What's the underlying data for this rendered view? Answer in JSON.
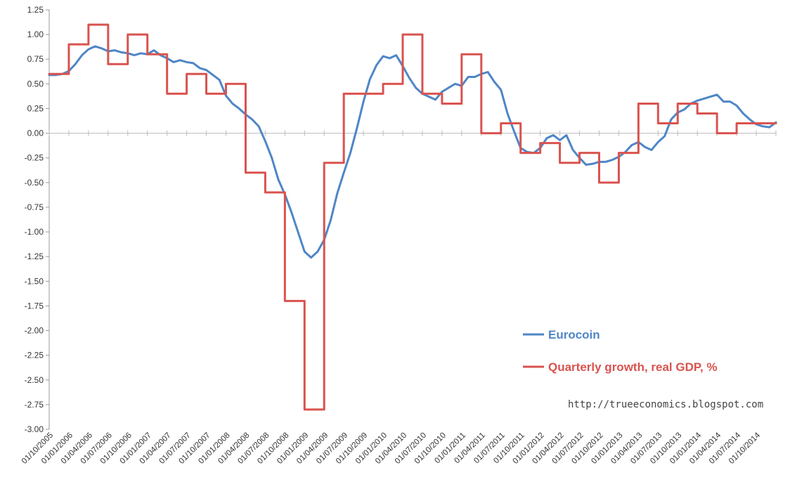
{
  "chart_data": {
    "type": "line",
    "ylim": [
      -3.0,
      1.25
    ],
    "ytick_labels": [
      "1.25",
      "1.00",
      "0.75",
      "0.50",
      "0.25",
      "0.00",
      "-0.25",
      "-0.50",
      "-0.75",
      "-1.00",
      "-1.25",
      "-1.50",
      "-1.75",
      "-2.00",
      "-2.25",
      "-2.50",
      "-2.75",
      "-3.00"
    ],
    "x_tick_labels": [
      "01/10/2005",
      "01/01/2006",
      "01/04/2006",
      "01/07/2006",
      "01/10/2006",
      "01/01/2007",
      "01/04/2007",
      "01/07/2007",
      "01/10/2007",
      "01/01/2008",
      "01/04/2008",
      "01/07/2008",
      "01/10/2008",
      "01/01/2009",
      "01/04/2009",
      "01/07/2009",
      "01/10/2009",
      "01/01/2010",
      "01/04/2010",
      "01/07/2010",
      "01/10/2010",
      "01/01/2011",
      "01/04/2011",
      "01/07/2011",
      "01/10/2011",
      "01/01/2012",
      "01/04/2012",
      "01/07/2012",
      "01/10/2012",
      "01/01/2013",
      "01/04/2013",
      "01/07/2013",
      "01/10/2013",
      "01/01/2014",
      "01/04/2014",
      "01/07/2014",
      "01/10/2014"
    ],
    "series": [
      {
        "name": "Eurocoin",
        "color": "#4f86c6",
        "step": false,
        "values": [
          0.59,
          0.59,
          0.6,
          0.63,
          0.7,
          0.79,
          0.85,
          0.88,
          0.86,
          0.83,
          0.84,
          0.82,
          0.81,
          0.79,
          0.81,
          0.8,
          0.84,
          0.79,
          0.76,
          0.72,
          0.74,
          0.72,
          0.71,
          0.66,
          0.64,
          0.59,
          0.54,
          0.38,
          0.3,
          0.25,
          0.19,
          0.14,
          0.07,
          -0.08,
          -0.25,
          -0.47,
          -0.62,
          -0.8,
          -1.0,
          -1.2,
          -1.26,
          -1.2,
          -1.08,
          -0.88,
          -0.61,
          -0.4,
          -0.2,
          0.05,
          0.32,
          0.55,
          0.69,
          0.78,
          0.76,
          0.79,
          0.68,
          0.56,
          0.46,
          0.4,
          0.37,
          0.34,
          0.42,
          0.46,
          0.5,
          0.48,
          0.57,
          0.57,
          0.6,
          0.62,
          0.52,
          0.44,
          0.2,
          0.02,
          -0.15,
          -0.19,
          -0.2,
          -0.15,
          -0.05,
          -0.02,
          -0.07,
          -0.02,
          -0.17,
          -0.25,
          -0.32,
          -0.31,
          -0.29,
          -0.29,
          -0.27,
          -0.24,
          -0.19,
          -0.12,
          -0.09,
          -0.14,
          -0.17,
          -0.09,
          -0.03,
          0.14,
          0.21,
          0.24,
          0.3,
          0.33,
          0.35,
          0.37,
          0.39,
          0.32,
          0.32,
          0.28,
          0.2,
          0.14,
          0.09,
          0.07,
          0.06,
          0.11
        ]
      },
      {
        "name": "Quarterly growth, real GDP, %",
        "color": "#d9534f",
        "step": true,
        "values": [
          0.6,
          0.6,
          0.6,
          0.9,
          0.9,
          0.9,
          1.1,
          1.1,
          1.1,
          0.7,
          0.7,
          0.7,
          1.0,
          1.0,
          1.0,
          0.8,
          0.8,
          0.8,
          0.4,
          0.4,
          0.4,
          0.6,
          0.6,
          0.6,
          0.4,
          0.4,
          0.4,
          0.5,
          0.5,
          0.5,
          -0.4,
          -0.4,
          -0.4,
          -0.6,
          -0.6,
          -0.6,
          -1.7,
          -1.7,
          -1.7,
          -2.8,
          -2.8,
          -2.8,
          -0.3,
          -0.3,
          -0.3,
          0.4,
          0.4,
          0.4,
          0.4,
          0.4,
          0.4,
          0.5,
          0.5,
          0.5,
          1.0,
          1.0,
          1.0,
          0.4,
          0.4,
          0.4,
          0.3,
          0.3,
          0.3,
          0.8,
          0.8,
          0.8,
          0.0,
          0.0,
          0.0,
          0.1,
          0.1,
          0.1,
          -0.2,
          -0.2,
          -0.2,
          -0.1,
          -0.1,
          -0.1,
          -0.3,
          -0.3,
          -0.3,
          -0.2,
          -0.2,
          -0.2,
          -0.5,
          -0.5,
          -0.5,
          -0.2,
          -0.2,
          -0.2,
          0.3,
          0.3,
          0.3,
          0.1,
          0.1,
          0.1,
          0.3,
          0.3,
          0.3,
          0.2,
          0.2,
          0.2,
          0.0,
          0.0,
          0.0,
          0.1,
          0.1,
          0.1,
          0.1,
          0.1,
          0.1,
          0.1
        ]
      }
    ],
    "legend_position": "lower-right",
    "grid": false
  },
  "watermark": "http://trueeconomics.blogspot.com"
}
